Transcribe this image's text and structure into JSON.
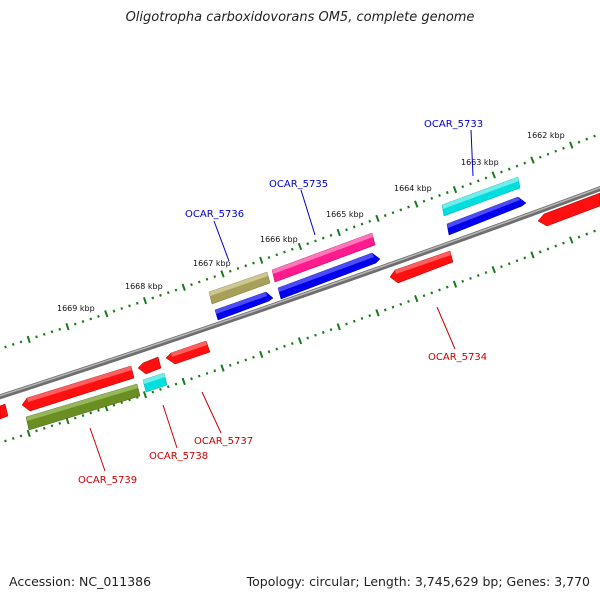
{
  "title": "Oligotropha carboxidovorans OM5, complete genome",
  "footer": {
    "accession": "Accession: NC_011386",
    "summary": "Topology: circular; Length: 3,745,629 bp; Genes: 3,770"
  },
  "kbp_ticks": [
    "1669 kbp",
    "1668 kbp",
    "1667 kbp",
    "1666 kbp",
    "1665 kbp",
    "1664 kbp",
    "1663 kbp",
    "1662 kbp"
  ],
  "genes": [
    {
      "name": "OCAR_5733",
      "color": "#0000cc"
    },
    {
      "name": "OCAR_5734",
      "color": "#cc0000"
    },
    {
      "name": "OCAR_5735",
      "color": "#0000cc"
    },
    {
      "name": "OCAR_5736",
      "color": "#0000cc"
    },
    {
      "name": "OCAR_5737",
      "color": "#cc0000"
    },
    {
      "name": "OCAR_5738",
      "color": "#cc0000"
    },
    {
      "name": "OCAR_5739",
      "color": "#cc0000"
    }
  ],
  "colors": {
    "backbone": "#808080",
    "ticks": "#1a7a1a",
    "strand_plus_label": "#0000cc",
    "strand_minus_label": "#cc0000",
    "red_gene": "#ff1010",
    "blue_gene": "#0000ee",
    "cyan_gene": "#00e0e0",
    "magenta_gene": "#ff2090",
    "olive_gene": "#b0a860",
    "darkolive_gene": "#6b8e23"
  }
}
